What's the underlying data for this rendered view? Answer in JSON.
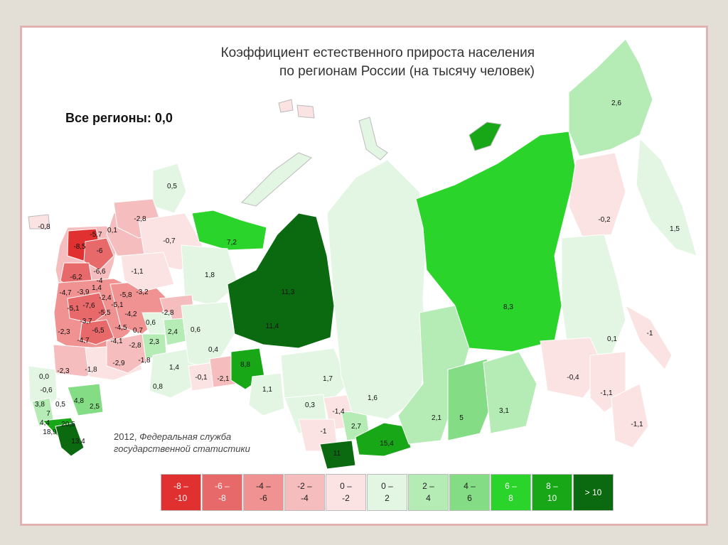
{
  "title_line1": "Коэффициент естественного прироста населения",
  "title_line2": "по регионам России (на тысячу человек)",
  "summary": "Все регионы: 0,0",
  "source_year": "2012,",
  "source_org_line1": "Федеральная служба",
  "source_org_line2": "государственной статистики",
  "legend": [
    {
      "top": "-8 –",
      "bottom": "-10",
      "color": "#e0302f",
      "text_color": "#ffffff"
    },
    {
      "top": "-6 –",
      "bottom": "-8",
      "color": "#e8696a",
      "text_color": "#ffffff"
    },
    {
      "top": "-4 –",
      "bottom": "-6",
      "color": "#f09292",
      "text_color": "#222222"
    },
    {
      "top": "-2 –",
      "bottom": "-4",
      "color": "#f5bdbd",
      "text_color": "#222222"
    },
    {
      "top": "0 –",
      "bottom": "-2",
      "color": "#fbe3e3",
      "text_color": "#222222"
    },
    {
      "top": "0 –",
      "bottom": "2",
      "color": "#e3f6e3",
      "text_color": "#222222"
    },
    {
      "top": "2 –",
      "bottom": "4",
      "color": "#b5ebb5",
      "text_color": "#222222"
    },
    {
      "top": "4 –",
      "bottom": "6",
      "color": "#84dc84",
      "text_color": "#222222"
    },
    {
      "top": "6 –",
      "bottom": "8",
      "color": "#2ad42a",
      "text_color": "#ffffff"
    },
    {
      "top": "8 –",
      "bottom": "10",
      "color": "#17a717",
      "text_color": "#ffffff"
    },
    {
      "top": "> 10",
      "bottom": "",
      "color": "#0b6a10",
      "text_color": "#ffffff"
    }
  ],
  "region_values": [
    "-0,8",
    "-5,7",
    "0,1",
    "-8,5",
    "-6",
    "-6,6",
    "-6,2",
    "-4",
    "-4,7",
    "-3,9",
    "1,4",
    "-5,8",
    "-3,2",
    "-5,1",
    "-7,6",
    "-2,4",
    "-5,1",
    "-3,7",
    "-5,5",
    "-4,2",
    "-2,3",
    "-6,5",
    "-4,5",
    "-4,7",
    "-4,1",
    "-2,8",
    "-2,3",
    "-1,8",
    "-2,9",
    "0,0",
    "-0,6",
    "3,8",
    "0,5",
    "7",
    "4,4",
    "20,5",
    "18,9",
    "4,8",
    "2,5",
    "13,4",
    "0,5",
    "-2,8",
    "-0,7",
    "-1,1",
    "7,2",
    "1,8",
    "-2,8",
    "0,6",
    "0,7",
    "2,4",
    "2,3",
    "0,6",
    "-1,8",
    "1,4",
    "0,8",
    "0,4",
    "-0,1",
    "-2,1",
    "11,3",
    "11,4",
    "8,8",
    "1,1",
    "1,7",
    "0,3",
    "-1,4",
    "-1",
    "2,7",
    "11",
    "1,6",
    "15,4",
    "2,1",
    "5",
    "3,1",
    "8,3",
    "2,6",
    "-0,2",
    "1,5",
    "0,1",
    "-1",
    "-0,4",
    "-1,1",
    "-1,1"
  ]
}
